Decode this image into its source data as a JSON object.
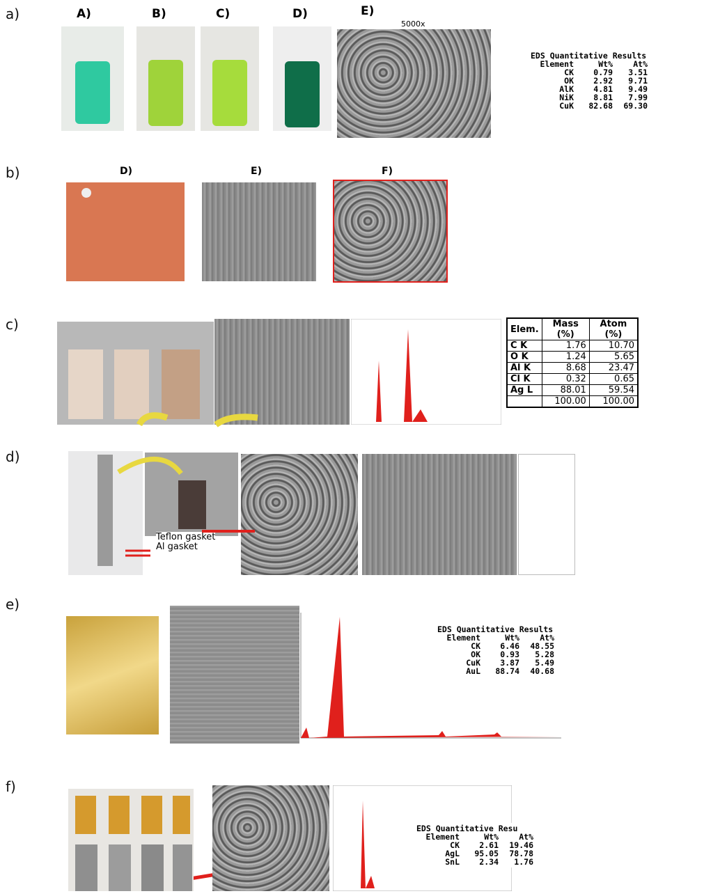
{
  "panels": [
    {
      "label": "a)",
      "image_labels": [
        "A)",
        "B)",
        "C)",
        "D)",
        "E)"
      ],
      "magnification": "5000x",
      "eds": {
        "title": "EDS Quantitative Results",
        "header": [
          "Element",
          "Wt%",
          "At%"
        ],
        "rows": [
          [
            "CK",
            "0.79",
            "3.51"
          ],
          [
            "OK",
            "2.92",
            "9.71"
          ],
          [
            "AlK",
            "4.81",
            "9.49"
          ],
          [
            "NiK",
            "8.81",
            "7.99"
          ],
          [
            "CuK",
            "82.68",
            "69.30"
          ]
        ]
      }
    },
    {
      "label": "b)",
      "image_labels": [
        "D)",
        "E)",
        "F)"
      ]
    },
    {
      "label": "c)",
      "table": {
        "header": [
          "Elem.",
          "Mass (%)",
          "Atom (%)"
        ],
        "rows": [
          [
            "C  K",
            "1.76",
            "10.70"
          ],
          [
            "O  K",
            "1.24",
            "5.65"
          ],
          [
            "Al  K",
            "8.68",
            "23.47"
          ],
          [
            "Cl  K",
            "0.32",
            "0.65"
          ],
          [
            "Ag  L",
            "88.01",
            "59.54"
          ]
        ],
        "total": [
          "100.00",
          "100.00"
        ]
      }
    },
    {
      "label": "d)",
      "annotations": [
        "Teflon  gasket",
        "Al gasket"
      ]
    },
    {
      "label": "e)",
      "eds": {
        "title": "EDS Quantitative Results",
        "header": [
          "Element",
          "Wt%",
          "At%"
        ],
        "rows": [
          [
            "CK",
            "6.46",
            "48.55"
          ],
          [
            "OK",
            "0.93",
            "5.28"
          ],
          [
            "CuK",
            "3.87",
            "5.49"
          ],
          [
            "AuL",
            "88.74",
            "40.68"
          ]
        ]
      }
    },
    {
      "label": "f)",
      "eds": {
        "title": "EDS Quantitative Resu",
        "header": [
          "Element",
          "Wt%",
          "At%"
        ],
        "rows": [
          [
            "CK",
            "2.61",
            "19.46"
          ],
          [
            "AgL",
            "95.05",
            "78.78"
          ],
          [
            "SnL",
            "2.34",
            "1.76"
          ]
        ]
      }
    }
  ]
}
